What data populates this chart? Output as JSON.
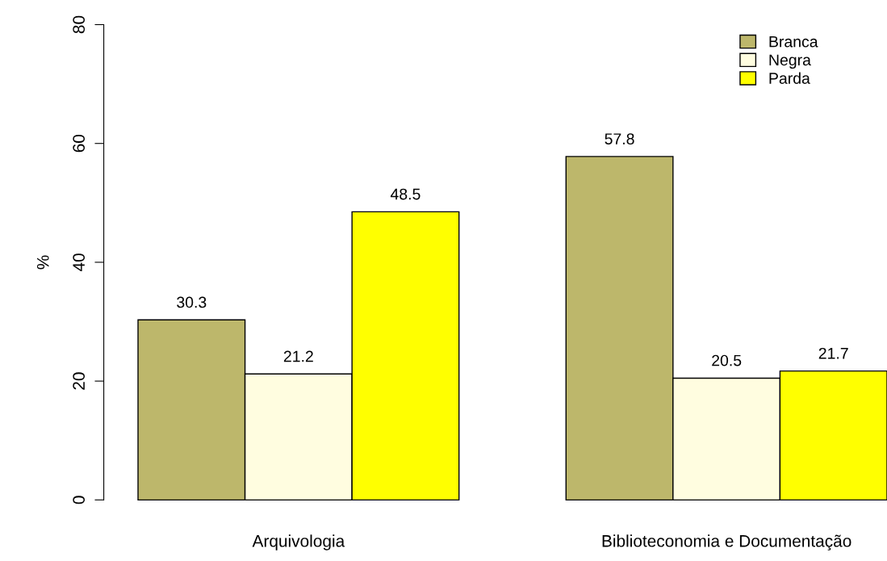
{
  "chart_data": {
    "type": "bar",
    "ylabel": "%",
    "categories": [
      "Arquivologia",
      "Biblioteconomia e Documentação"
    ],
    "series": [
      {
        "name": "Branca",
        "color": "#bdb76b",
        "values": [
          30.3,
          57.8
        ]
      },
      {
        "name": "Negra",
        "color": "#fffde0",
        "values": [
          21.2,
          20.5
        ]
      },
      {
        "name": "Parda",
        "color": "#ffff00",
        "values": [
          48.5,
          21.7
        ]
      }
    ],
    "ylim": [
      0,
      80
    ],
    "yticks": [
      0,
      20,
      40,
      60,
      80
    ],
    "data_labels": true,
    "legend": "top right",
    "grid": false
  }
}
